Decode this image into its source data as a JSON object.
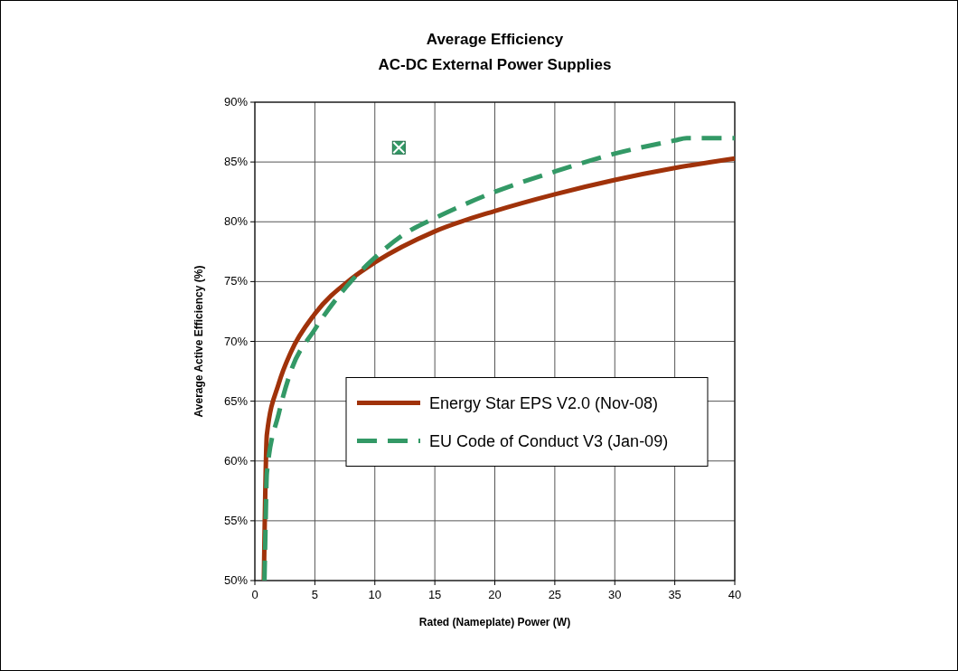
{
  "chart_data": {
    "type": "line",
    "title": "Average Efficiency",
    "subtitle": "AC-DC External Power Supplies",
    "xlabel": "Rated (Nameplate) Power (W)",
    "ylabel": "Average Active Efficiency (%)",
    "xlim": [
      0,
      40
    ],
    "xticks": [
      0,
      5,
      10,
      15,
      20,
      25,
      30,
      35,
      40
    ],
    "ylim": [
      50,
      90
    ],
    "yticks": [
      {
        "value": 50,
        "label": "50%"
      },
      {
        "value": 55,
        "label": "55%"
      },
      {
        "value": 60,
        "label": "60%"
      },
      {
        "value": 65,
        "label": "65%"
      },
      {
        "value": 70,
        "label": "70%"
      },
      {
        "value": 75,
        "label": "75%"
      },
      {
        "value": 80,
        "label": "80%"
      },
      {
        "value": 85,
        "label": "85%"
      },
      {
        "value": 90,
        "label": "90%"
      }
    ],
    "grid": true,
    "legend": "right",
    "series": [
      {
        "name": "Energy Star EPS V2.0 (Nov-08)",
        "color": "#a0320a",
        "line_style": "solid",
        "x": [
          0.75,
          1,
          2,
          3,
          5,
          8,
          10,
          15,
          20,
          25,
          30,
          35,
          40
        ],
        "values": [
          50,
          62.2,
          66.5,
          69.1,
          72.3,
          75.2,
          76.6,
          79.2,
          80.9,
          82.3,
          83.5,
          84.5,
          85.3
        ]
      },
      {
        "name": "EU Code of Conduct V3 (Jan-09)",
        "color": "#339966",
        "line_style": "dashed",
        "x": [
          0.8,
          0.9,
          1,
          2,
          3,
          5,
          8,
          10,
          12.5,
          15,
          20,
          25,
          30,
          35,
          36,
          40
        ],
        "values": [
          50,
          55,
          59,
          64,
          67.5,
          71,
          75,
          77,
          79,
          80.3,
          82.5,
          84.2,
          85.7,
          86.8,
          87,
          87
        ]
      },
      {
        "type": "scatter",
        "color": "#339966",
        "marker": "square",
        "x": [
          12
        ],
        "values": [
          86.2
        ]
      }
    ]
  }
}
